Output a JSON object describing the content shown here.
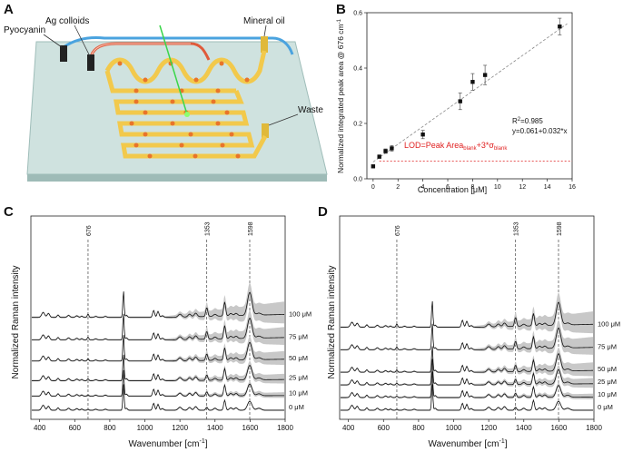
{
  "panels": {
    "A": "A",
    "B": "B",
    "C": "C",
    "D": "D"
  },
  "device": {
    "labels": {
      "pyocyanin": "Pyocyanin",
      "ag_colloids": "Ag colloids",
      "mineral_oil": "Mineral oil",
      "waste": "Waste"
    },
    "colors": {
      "blue_tube": "#4aa3df",
      "red_tube": "#e05a3a",
      "channel": "#f2c94c",
      "droplet": "#e8742a",
      "chip": "#a9c7c4",
      "laser": "#3ad64a"
    }
  },
  "chart_data": [
    {
      "type": "scatter",
      "panel": "B",
      "xlabel": "Concentration [μM]",
      "ylabel": "Normalized integrated peak area @ 676 cm",
      "ylabel_sup": "-1",
      "xlim": [
        -0.5,
        16
      ],
      "ylim": [
        0,
        0.6
      ],
      "xticks": [
        0,
        2,
        4,
        6,
        8,
        10,
        12,
        14,
        16
      ],
      "yticks": [
        0.0,
        0.2,
        0.4,
        0.6
      ],
      "xtick_labels": [
        "0",
        "2",
        "4",
        "6",
        "8",
        "10",
        "12",
        "14",
        "16"
      ],
      "ytick_labels": [
        "0.0",
        "0.2",
        "0.4",
        "0.6"
      ],
      "points": [
        {
          "x": 0,
          "y": 0.045,
          "err": 0.005
        },
        {
          "x": 0.5,
          "y": 0.08,
          "err": 0.006
        },
        {
          "x": 1,
          "y": 0.1,
          "err": 0.008
        },
        {
          "x": 1.5,
          "y": 0.11,
          "err": 0.01
        },
        {
          "x": 4,
          "y": 0.16,
          "err": 0.015
        },
        {
          "x": 7,
          "y": 0.28,
          "err": 0.03
        },
        {
          "x": 8,
          "y": 0.35,
          "err": 0.03
        },
        {
          "x": 9,
          "y": 0.375,
          "err": 0.035
        },
        {
          "x": 15,
          "y": 0.55,
          "err": 0.03
        }
      ],
      "fit": {
        "intercept": 0.061,
        "slope": 0.032,
        "r2_label": "R",
        "r2_value": "=0.985",
        "equation": "y=0.061+0.032*x"
      },
      "lod": {
        "y": 0.064,
        "text_pre": "LOD=Peak Area",
        "sub1": "blank",
        "mid": "+3*σ",
        "sub2": "blank",
        "color": "#e02020"
      }
    },
    {
      "type": "line",
      "panel": "C",
      "xlabel": "Wavenumber [cm",
      "xlabel_sup": "-1",
      "xlabel_post": "]",
      "ylabel": "Normalized Raman intensity",
      "xlim": [
        350,
        1800
      ],
      "xticks": [
        400,
        600,
        800,
        1000,
        1200,
        1400,
        1600,
        1800
      ],
      "xtick_labels": [
        "400",
        "600",
        "800",
        "1000",
        "1200",
        "1400",
        "1600",
        "1800"
      ],
      "markers": [
        {
          "x": 676,
          "label": "676"
        },
        {
          "x": 1353,
          "label": "1353"
        },
        {
          "x": 1598,
          "label": "1598"
        }
      ],
      "series": [
        {
          "name": "0 μM",
          "offset": 0.0
        },
        {
          "name": "10 μM",
          "offset": 1.0
        },
        {
          "name": "25 μM",
          "offset": 2.1
        },
        {
          "name": "50 μM",
          "offset": 3.5
        },
        {
          "name": "75 μM",
          "offset": 5.0
        },
        {
          "name": "100 μM",
          "offset": 6.6
        }
      ]
    },
    {
      "type": "line",
      "panel": "D",
      "xlabel": "Wavenumber [cm",
      "xlabel_sup": "-1",
      "xlabel_post": "]",
      "ylabel": "Normalized Raman intensity",
      "xlim": [
        350,
        1800
      ],
      "xticks": [
        400,
        600,
        800,
        1000,
        1200,
        1400,
        1600,
        1800
      ],
      "xtick_labels": [
        "400",
        "600",
        "800",
        "1000",
        "1200",
        "1400",
        "1600",
        "1800"
      ],
      "markers": [
        {
          "x": 676,
          "label": "676"
        },
        {
          "x": 1353,
          "label": "1353"
        },
        {
          "x": 1598,
          "label": "1598"
        }
      ],
      "series": [
        {
          "name": "0 μM",
          "offset": 0.0
        },
        {
          "name": "10 μM",
          "offset": 0.9
        },
        {
          "name": "25 μM",
          "offset": 1.8
        },
        {
          "name": "50 μM",
          "offset": 2.7
        },
        {
          "name": "75 μM",
          "offset": 4.3
        },
        {
          "name": "100 μM",
          "offset": 5.9
        }
      ]
    }
  ]
}
